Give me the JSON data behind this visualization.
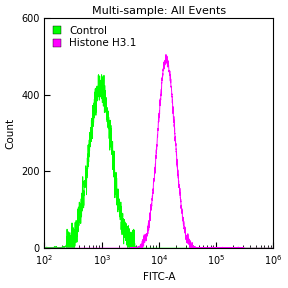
{
  "title": "Multi-sample: All Events",
  "xlabel": "FITC-A",
  "ylabel": "Count",
  "xlim_log": [
    2,
    6
  ],
  "ylim": [
    0,
    600
  ],
  "yticks": [
    0,
    200,
    400,
    600
  ],
  "background_color": "#ffffff",
  "plot_bg_color": "#ffffff",
  "legend_entries": [
    "Control",
    "Histone H3.1"
  ],
  "legend_colors": [
    "#00ff00",
    "#ff00ff"
  ],
  "control_peak_log": 2.98,
  "control_peak_height": 420,
  "control_sigma_log": 0.2,
  "histone_peak_log": 4.13,
  "histone_peak_height": 490,
  "histone_sigma_log": 0.15,
  "noise_seed": 42,
  "title_fontsize": 8,
  "axis_fontsize": 7.5,
  "tick_fontsize": 7,
  "legend_fontsize": 7.5
}
